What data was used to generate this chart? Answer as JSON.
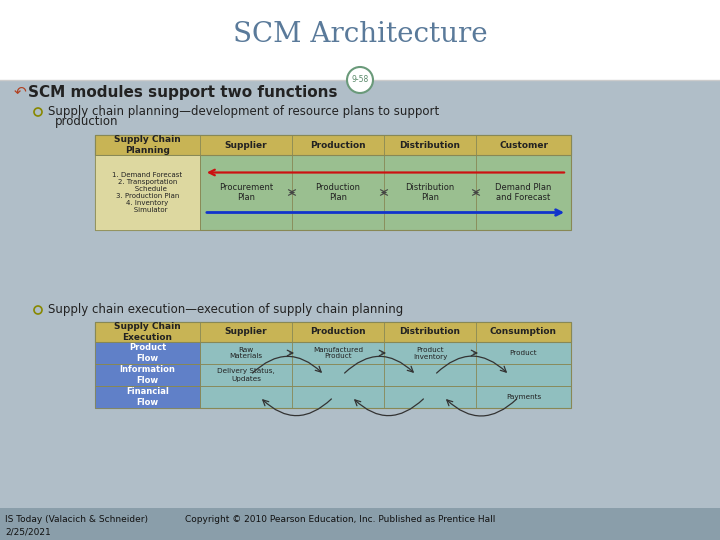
{
  "title": "SCM Architecture",
  "slide_number": "9-58",
  "bg_color": "#b0bec8",
  "header_bg": "#ffffff",
  "header_line_color": "#7a9a7a",
  "title_color": "#5a7a9a",
  "title_fontsize": 20,
  "bullet_main": "SCM modules support two functions",
  "bullet_main_color": "#222222",
  "bullet1_text": "Supply chain planning—development of resource plans to support\n      production",
  "bullet2_text": "Supply chain execution—execution of supply chain planning",
  "bullet_color": "#222222",
  "bullet_symbol_color": "#b04020",
  "sub_bullet_color": "#888800",
  "footer_bg": "#8a9eaa",
  "footer_text1": "IS Today (Valacich & Schneider)",
  "footer_text2": "Copyright © 2010 Pearson Education, Inc. Published as Prentice Hall",
  "footer_date": "2/25/2021",
  "footer_color": "#111111",
  "table1_header_bg": "#c8b455",
  "table1_body_bg": "#9abf90",
  "table1_col1_bg": "#ddd8a0",
  "table2_header_bg": "#c8b455",
  "table2_body_bg": "#90bfbf",
  "table2_col1_bg": "#6080c8",
  "table_border_color": "#888855",
  "planning_headers": [
    "Supply Chain\nPlanning",
    "Supplier",
    "Production",
    "Distribution",
    "Customer"
  ],
  "planning_col1_text": "1. Demand Forecast\n2. Transportation\n   Schedule\n3. Production Plan\n4. Inventory\n   Simulator",
  "planning_row_items": [
    "Procurement\nPlan",
    "Production\nPlan",
    "Distribution\nPlan",
    "Demand Plan\nand Forecast"
  ],
  "execution_headers": [
    "Supply Chain\nExecution",
    "Supplier",
    "Production",
    "Distribution",
    "Consumption"
  ],
  "circle_border_color": "#6a9a7a",
  "circle_text_color": "#5a8a6a"
}
